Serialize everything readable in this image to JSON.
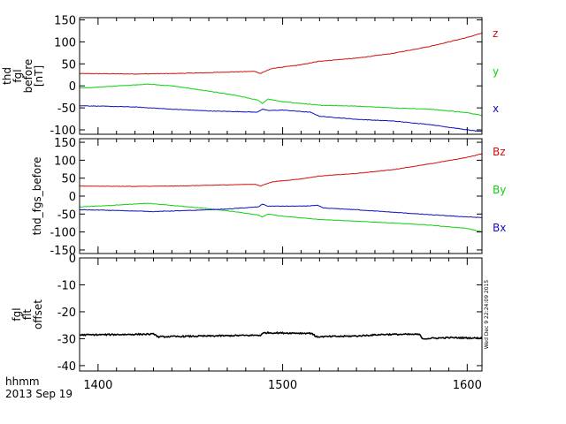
{
  "chart_data": [
    {
      "type": "line",
      "ylabel_lines": [
        "thd",
        "fgl",
        "before",
        "[nT]"
      ],
      "ylim": [
        -110,
        155
      ],
      "yticks": [
        150,
        100,
        50,
        0,
        -50,
        -100
      ],
      "xlim": [
        1390,
        1608
      ],
      "colors": {
        "z": "#d01010",
        "y": "#10d010",
        "x": "#1010c0"
      },
      "series": [
        {
          "name": "z",
          "color": "#d01010",
          "noise": 0.6,
          "x": [
            1390,
            1420,
            1440,
            1460,
            1475,
            1485,
            1488,
            1490,
            1492,
            1495,
            1510,
            1520,
            1540,
            1560,
            1580,
            1600,
            1608
          ],
          "values": [
            28,
            27,
            28,
            30,
            32,
            33,
            28,
            32,
            36,
            40,
            48,
            56,
            63,
            74,
            90,
            110,
            120
          ]
        },
        {
          "name": "y",
          "color": "#10d010",
          "noise": 0.6,
          "x": [
            1390,
            1400,
            1415,
            1427,
            1440,
            1460,
            1475,
            1487,
            1489,
            1492,
            1500,
            1520,
            1540,
            1560,
            1580,
            1600,
            1608
          ],
          "values": [
            -5,
            -3,
            1,
            4,
            0,
            -12,
            -22,
            -33,
            -40,
            -30,
            -36,
            -44,
            -46,
            -50,
            -53,
            -61,
            -67
          ]
        },
        {
          "name": "x",
          "color": "#1010c0",
          "noise": 0.6,
          "x": [
            1390,
            1420,
            1440,
            1460,
            1480,
            1486,
            1489,
            1492,
            1500,
            1515,
            1520,
            1540,
            1560,
            1580,
            1600,
            1608
          ],
          "values": [
            -45,
            -48,
            -53,
            -57,
            -59,
            -60,
            -53,
            -56,
            -55,
            -60,
            -69,
            -76,
            -80,
            -88,
            -100,
            -104
          ]
        }
      ]
    },
    {
      "type": "line",
      "ylabel_lines": [
        "thd_fgs_before"
      ],
      "ylim": [
        -160,
        160
      ],
      "yticks": [
        150,
        100,
        50,
        0,
        -50,
        -100,
        -150
      ],
      "xlim": [
        1390,
        1608
      ],
      "series": [
        {
          "name": "Bz",
          "color": "#d01010",
          "noise": 0.6,
          "x": [
            1390,
            1420,
            1440,
            1460,
            1475,
            1485,
            1488,
            1490,
            1492,
            1495,
            1510,
            1520,
            1540,
            1560,
            1580,
            1600,
            1608
          ],
          "values": [
            28,
            27,
            28,
            30,
            32,
            33,
            28,
            32,
            36,
            40,
            48,
            56,
            63,
            74,
            90,
            108,
            118
          ]
        },
        {
          "name": "By",
          "color": "#10d010",
          "noise": 0.6,
          "x": [
            1390,
            1410,
            1427,
            1440,
            1460,
            1475,
            1487,
            1489,
            1492,
            1500,
            1520,
            1540,
            1560,
            1580,
            1600,
            1608
          ],
          "values": [
            -30,
            -25,
            -20,
            -26,
            -35,
            -44,
            -53,
            -58,
            -50,
            -56,
            -65,
            -70,
            -75,
            -81,
            -90,
            -100
          ]
        },
        {
          "name": "Bx",
          "color": "#1010c0",
          "noise": 0.7,
          "x": [
            1390,
            1410,
            1430,
            1450,
            1470,
            1487,
            1489,
            1492,
            1510,
            1519,
            1522,
            1540,
            1560,
            1580,
            1600,
            1608
          ],
          "values": [
            -38,
            -40,
            -43,
            -40,
            -36,
            -30,
            -22,
            -28,
            -28,
            -26,
            -33,
            -38,
            -45,
            -52,
            -58,
            -60
          ]
        }
      ]
    },
    {
      "type": "line",
      "ylabel_lines": [
        "fgl",
        "flt",
        "offset"
      ],
      "ylim": [
        -42,
        0
      ],
      "yticks": [
        0,
        -10,
        -20,
        -30,
        -40
      ],
      "xlim": [
        1390,
        1608
      ],
      "xticks": [
        1400,
        1500,
        1600
      ],
      "series": [
        {
          "name": "offset",
          "color": "#000000",
          "noise": 0.25,
          "x": [
            1390,
            1431,
            1432,
            1488,
            1490,
            1516,
            1518,
            1540,
            1555,
            1574,
            1576,
            1590,
            1608
          ],
          "values": [
            -28.6,
            -28.3,
            -29.3,
            -28.7,
            -27.8,
            -28,
            -29.3,
            -29,
            -28.4,
            -28.4,
            -30,
            -29.6,
            -29.8
          ]
        }
      ]
    }
  ],
  "legend": [
    {
      "label": "z",
      "color": "#d01010"
    },
    {
      "label": "y",
      "color": "#10d010"
    },
    {
      "label": "x",
      "color": "#1010c0"
    },
    {
      "label": "Bz",
      "color": "#d01010"
    },
    {
      "label": "By",
      "color": "#10d010"
    },
    {
      "label": "Bx",
      "color": "#1010c0"
    }
  ],
  "footer": {
    "unit_label": "hhmm",
    "date_label": "2013 Sep 19",
    "stamp": "Wed Dec  9 22:24:09 2015"
  }
}
